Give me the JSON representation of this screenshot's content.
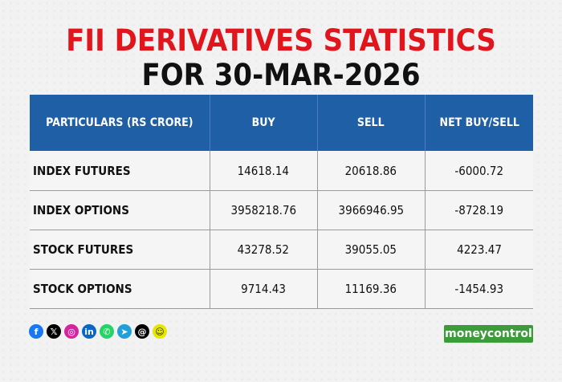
{
  "title_line1": "FII DERIVATIVES STATISTICS",
  "title_line2": "FOR 30-MAR-2026",
  "table": {
    "headers": [
      "PARTICULARS (RS CRORE)",
      "BUY",
      "SELL",
      "NET BUY/SELL"
    ],
    "rows": [
      [
        "INDEX FUTURES",
        "14618.14",
        "20618.86",
        "-6000.72"
      ],
      [
        "INDEX OPTIONS",
        "3958218.76",
        "3966946.95",
        "-8728.19"
      ],
      [
        "STOCK FUTURES",
        "43278.52",
        "39055.05",
        "4223.47"
      ],
      [
        "STOCK OPTIONS",
        "9714.43",
        "11169.36",
        "-1454.93"
      ]
    ]
  },
  "social_icons": [
    {
      "name": "facebook-icon",
      "glyph": "f",
      "color": "#1877f2"
    },
    {
      "name": "x-icon",
      "glyph": "𝕏",
      "color": "#000000"
    },
    {
      "name": "instagram-icon",
      "glyph": "◎",
      "color": "#d6249f"
    },
    {
      "name": "linkedin-icon",
      "glyph": "in",
      "color": "#0a66c2"
    },
    {
      "name": "whatsapp-icon",
      "glyph": "✆",
      "color": "#25d366"
    },
    {
      "name": "telegram-icon",
      "glyph": "➤",
      "color": "#229ed9"
    },
    {
      "name": "threads-icon",
      "glyph": "@",
      "color": "#000000"
    },
    {
      "name": "snapchat-icon",
      "glyph": "☺",
      "color": "#e6e600"
    }
  ],
  "brand_logo": "moneycontrol",
  "colors": {
    "title_red": "#e1161d",
    "header_blue": "#1f5fa6",
    "brand_green": "#3c9c3a"
  }
}
